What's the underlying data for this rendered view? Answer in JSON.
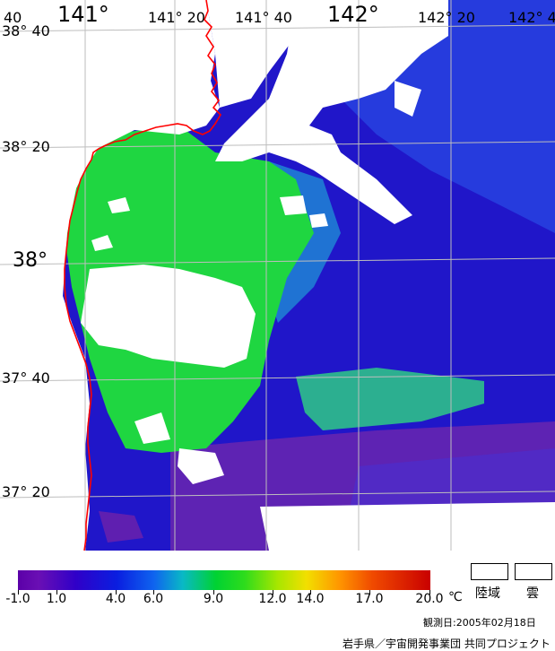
{
  "map": {
    "lon_labels_large": [
      "141°",
      "142°"
    ],
    "lon_labels_small": [
      "40",
      "141° 20",
      "141° 40",
      "142° 20",
      "142° 4"
    ],
    "lat_labels_small": [
      "38° 40",
      "38° 20",
      "37° 40",
      "37° 20"
    ],
    "lat_labels_large": [
      "38°"
    ]
  },
  "legend": {
    "ticks": [
      "-1.0",
      "1.0",
      "4.0",
      "6.0",
      "9.0",
      "12.0",
      "14.0",
      "17.0",
      "20.0"
    ],
    "unit": "℃",
    "land_label": "陸域",
    "cloud_label": "雲"
  },
  "colors": {
    "land_cloud": "#ffffff",
    "coastline": "#ff0000",
    "grid": "#bdbdbd",
    "deep_blue": "#1f1ad3",
    "cold_purple": "#5f1fb0",
    "warm_green": "#22d83b"
  },
  "footer": {
    "date": "観測日:2005年02月18日",
    "credit": "岩手県／宇宙開発事業団 共同プロジェクト"
  }
}
